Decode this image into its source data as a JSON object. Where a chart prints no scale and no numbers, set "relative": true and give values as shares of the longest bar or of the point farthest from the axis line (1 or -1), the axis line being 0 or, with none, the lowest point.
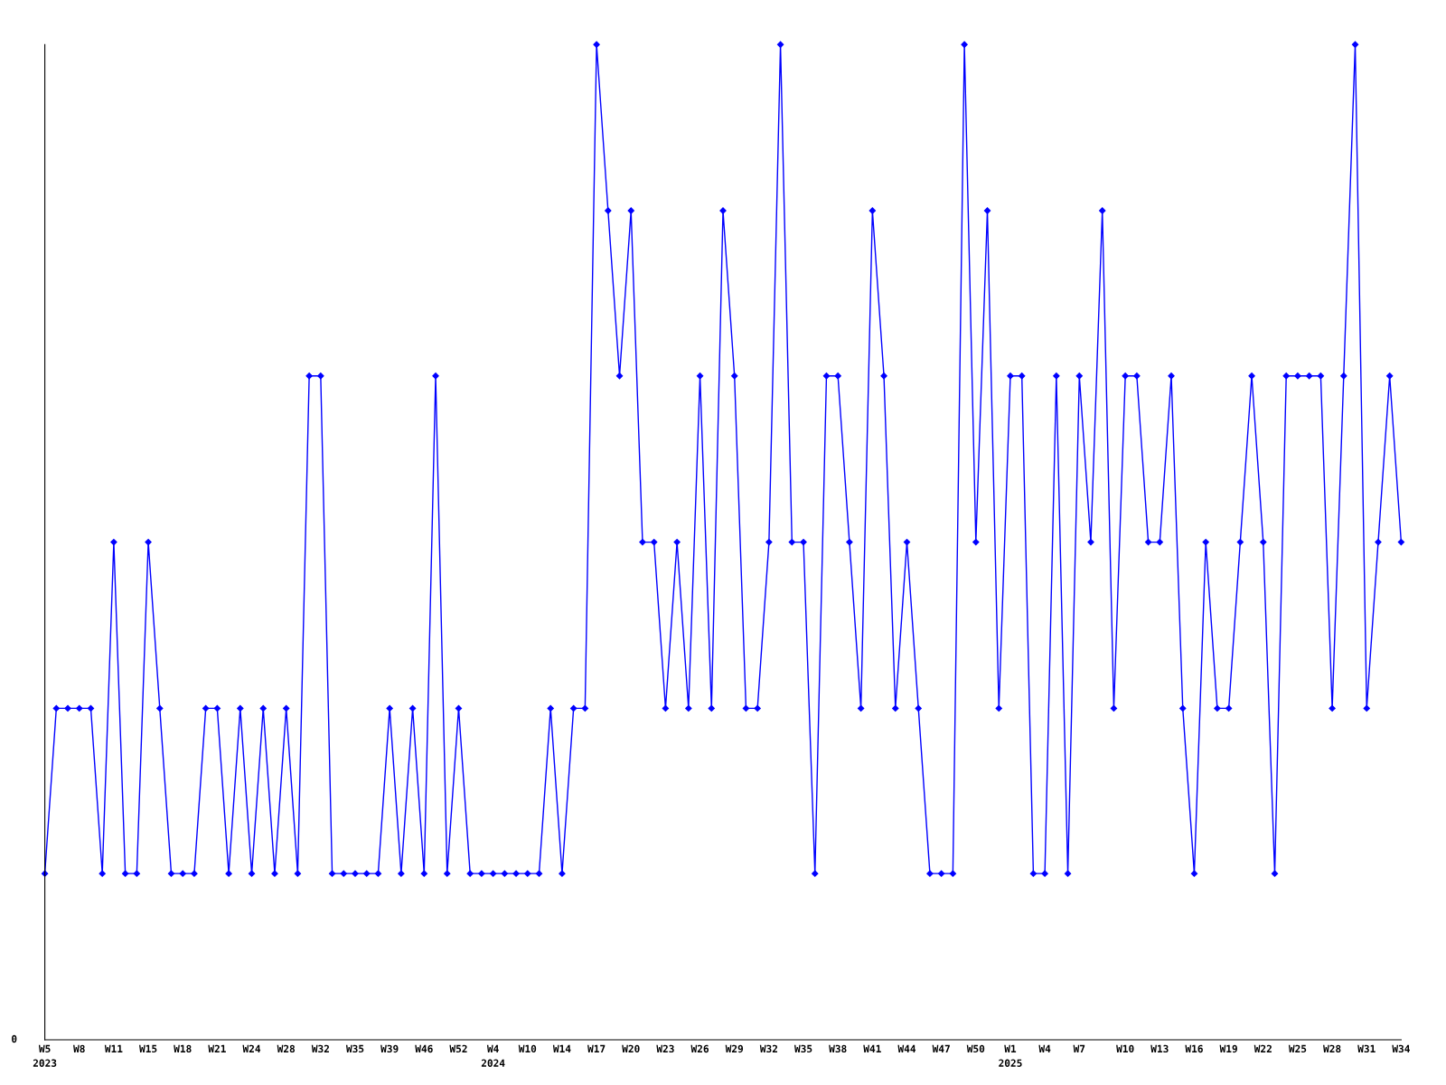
{
  "chart_data": {
    "type": "line",
    "relative": true,
    "color": "#0000ff",
    "marker": "diamond",
    "line_style": "solid",
    "grid": false,
    "annotations": [
      "0"
    ],
    "categories": [
      "W5\n2023",
      null,
      null,
      "W8",
      null,
      null,
      "W11",
      null,
      null,
      "W15",
      null,
      null,
      "W18",
      null,
      null,
      "W21",
      null,
      null,
      "W24",
      null,
      null,
      "W28",
      null,
      null,
      "W32",
      null,
      null,
      "W35",
      null,
      null,
      "W39",
      null,
      null,
      "W46",
      null,
      null,
      "W52",
      null,
      null,
      "W4\n2024",
      null,
      null,
      "W10",
      null,
      null,
      "W14",
      null,
      null,
      "W17",
      null,
      null,
      "W20",
      null,
      null,
      "W23",
      null,
      null,
      "W26",
      null,
      null,
      "W29",
      null,
      null,
      "W32",
      null,
      null,
      "W35",
      null,
      null,
      "W38",
      null,
      null,
      "W41",
      null,
      null,
      "W44",
      null,
      null,
      "W47",
      null,
      null,
      "W50",
      null,
      null,
      "W1\n2025",
      null,
      null,
      "W4",
      null,
      null,
      "W7",
      null,
      null,
      null,
      "W10",
      null,
      null,
      "W13",
      null,
      null,
      "W16",
      null,
      null,
      "W19",
      null,
      null,
      "W22",
      null,
      null,
      "W25",
      null,
      null,
      "W28",
      null,
      null,
      "W31",
      null,
      null,
      "W34"
    ],
    "values": [
      0.167,
      0.333,
      0.333,
      0.333,
      0.333,
      0.167,
      0.5,
      0.167,
      0.167,
      0.5,
      0.333,
      0.167,
      0.167,
      0.167,
      0.333,
      0.333,
      0.167,
      0.333,
      0.167,
      0.333,
      0.167,
      0.333,
      0.167,
      0.667,
      0.667,
      0.167,
      0.167,
      0.167,
      0.167,
      0.167,
      0.333,
      0.167,
      0.333,
      0.167,
      0.667,
      0.167,
      0.333,
      0.167,
      0.167,
      0.167,
      0.167,
      0.167,
      0.167,
      0.167,
      0.333,
      0.167,
      0.333,
      0.333,
      1,
      0.833,
      0.667,
      0.833,
      0.5,
      0.5,
      0.333,
      0.5,
      0.333,
      0.667,
      0.333,
      0.833,
      0.667,
      0.333,
      0.333,
      0.5,
      1,
      0.5,
      0.5,
      0.167,
      0.667,
      0.667,
      0.5,
      0.333,
      0.833,
      0.667,
      0.333,
      0.5,
      0.333,
      0.167,
      0.167,
      0.167,
      1,
      0.5,
      0.833,
      0.333,
      0.667,
      0.667,
      0.167,
      0.167,
      0.667,
      0.167,
      0.667,
      0.5,
      0.833,
      0.333,
      0.667,
      0.667,
      0.5,
      0.5,
      0.667,
      0.333,
      0.167,
      0.5,
      0.333,
      0.333,
      0.5,
      0.667,
      0.5,
      0.167,
      0.667,
      0.667,
      0.667,
      0.667,
      0.333,
      0.667,
      1,
      0.333,
      0.5,
      0.667,
      0.5
    ]
  }
}
